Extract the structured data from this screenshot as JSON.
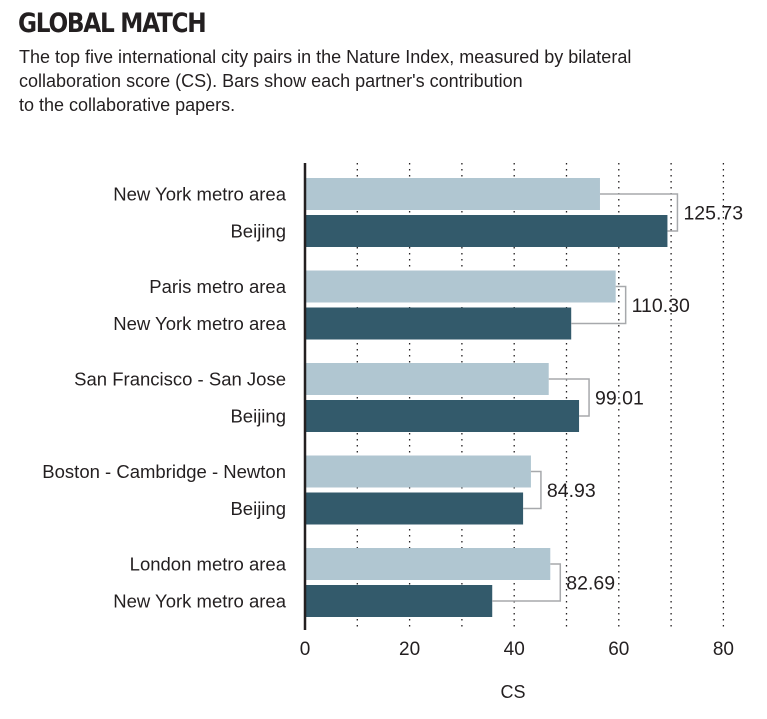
{
  "header": {
    "title": "GLOBAL MATCH",
    "subtitle_lines": [
      "The top five international city pairs in the Nature Index, measured by bilateral",
      "collaboration score (CS). Bars show each partner's contribution",
      "to the collaborative papers."
    ]
  },
  "colors": {
    "light_bar": "#b0c6d1",
    "dark_bar": "#335a6b",
    "axis": "#231f20",
    "grid": "#231f20",
    "bracket": "#a7a9ac"
  },
  "chart_data": {
    "type": "bar",
    "orientation": "horizontal",
    "title": "GLOBAL MATCH",
    "xlabel": "CS",
    "ylabel": "",
    "xlim": [
      0,
      80
    ],
    "xticks": [
      0,
      20,
      40,
      60,
      80
    ],
    "grid": true,
    "grid_style": "dotted, every 10",
    "legend": "none",
    "pairs": [
      {
        "total_label": "125.73",
        "total": 125.73,
        "partners": [
          {
            "name": "New York metro area",
            "value": 56.4
          },
          {
            "name": "Beijing",
            "value": 69.3
          }
        ]
      },
      {
        "total_label": "110.30",
        "total": 110.3,
        "partners": [
          {
            "name": "Paris metro area",
            "value": 59.4
          },
          {
            "name": "New York metro area",
            "value": 50.9
          }
        ]
      },
      {
        "total_label": "99.01",
        "total": 99.01,
        "partners": [
          {
            "name": "San Francisco - San Jose",
            "value": 46.6
          },
          {
            "name": "Beijing",
            "value": 52.4
          }
        ]
      },
      {
        "total_label": "84.93",
        "total": 84.93,
        "partners": [
          {
            "name": "Boston - Cambridge - Newton",
            "value": 43.2
          },
          {
            "name": "Beijing",
            "value": 41.7
          }
        ]
      },
      {
        "total_label": "82.69",
        "total": 82.69,
        "partners": [
          {
            "name": "London metro area",
            "value": 46.9
          },
          {
            "name": "New York metro area",
            "value": 35.8
          }
        ]
      }
    ]
  }
}
